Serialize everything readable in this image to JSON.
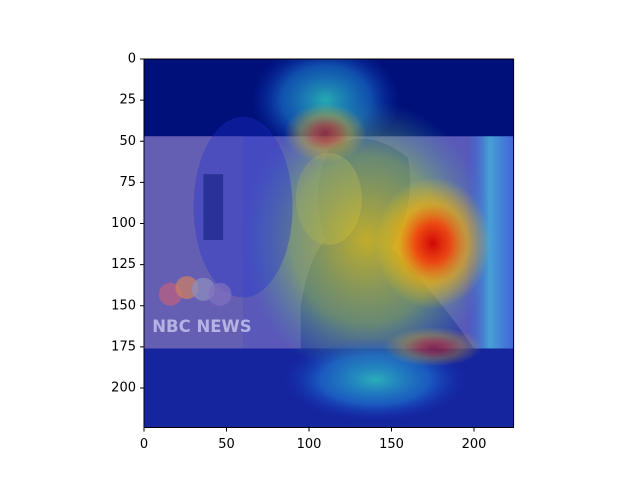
{
  "chart_data": {
    "type": "image",
    "annotations": [
      "NBC NEWS"
    ],
    "xlim": [
      0,
      224
    ],
    "ylim": [
      224,
      0
    ],
    "xticks": [
      0,
      50,
      100,
      150,
      200
    ],
    "yticks": [
      0,
      25,
      50,
      75,
      100,
      125,
      150,
      175,
      200
    ],
    "grid": false
  }
}
